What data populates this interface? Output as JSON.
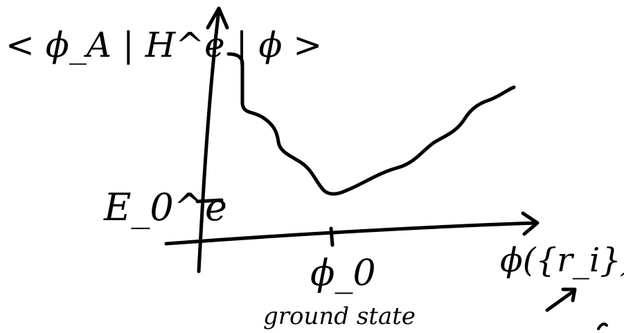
{
  "y_axis_label": "< ϕ_A | H^e | ϕ >",
  "ground_energy_label": "E_0^e",
  "x_axis_label": "ϕ({r_i})",
  "minimum_label": "ϕ_0",
  "minimum_caption": "ground state",
  "colors": {
    "ink": "#000000",
    "background": "#ffffff"
  }
}
